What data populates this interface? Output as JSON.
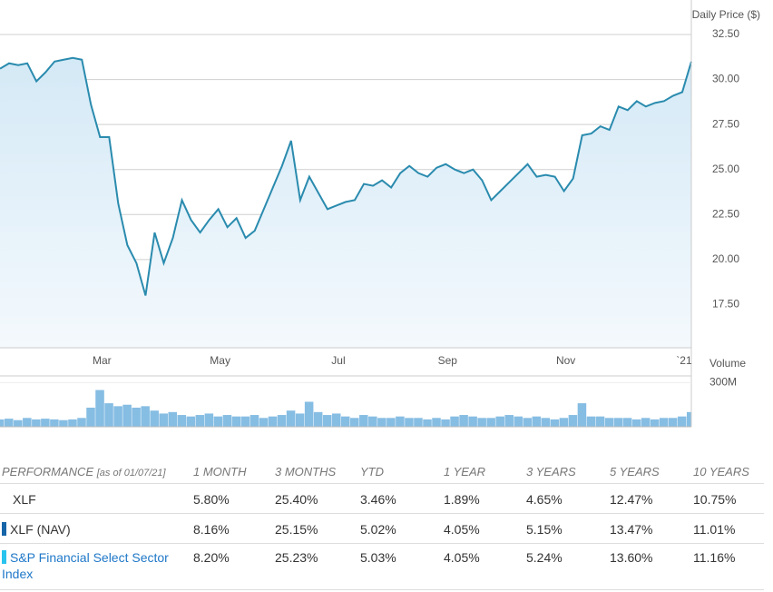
{
  "chart_data": [
    {
      "type": "line",
      "y_axis_label": "Daily Price ($)",
      "categories": [
        null,
        null,
        null,
        null,
        null,
        null,
        null,
        null,
        null,
        null,
        null,
        "Mar",
        null,
        null,
        null,
        null,
        null,
        null,
        null,
        null,
        null,
        null,
        null,
        null,
        "May",
        null,
        null,
        null,
        null,
        null,
        null,
        null,
        null,
        null,
        null,
        null,
        null,
        "Jul",
        null,
        null,
        null,
        null,
        null,
        null,
        null,
        null,
        null,
        null,
        null,
        "Sep",
        null,
        null,
        null,
        null,
        null,
        null,
        null,
        null,
        null,
        null,
        null,
        null,
        "Nov",
        null,
        null,
        null,
        null,
        null,
        null,
        null,
        null,
        null,
        null,
        null,
        null,
        "`21",
        null
      ],
      "series": [
        {
          "color": "#2a8bae",
          "values": [
            30.6,
            30.9,
            30.8,
            30.9,
            29.9,
            30.4,
            31.0,
            31.1,
            31.2,
            31.1,
            28.6,
            26.8,
            26.8,
            23.1,
            20.8,
            19.8,
            18.0,
            21.5,
            19.8,
            21.2,
            23.3,
            22.2,
            21.5,
            22.2,
            22.8,
            21.8,
            22.3,
            21.2,
            21.6,
            22.8,
            24.0,
            25.2,
            26.6,
            23.3,
            24.6,
            23.7,
            22.8,
            23.0,
            23.2,
            23.3,
            24.2,
            24.1,
            24.4,
            24.0,
            24.8,
            25.2,
            24.8,
            24.6,
            25.1,
            25.3,
            25.0,
            24.8,
            25.0,
            24.4,
            23.3,
            23.8,
            24.3,
            24.8,
            25.3,
            24.6,
            24.7,
            24.6,
            23.8,
            24.5,
            26.9,
            27.0,
            27.4,
            27.2,
            28.5,
            28.3,
            28.8,
            28.5,
            28.7,
            28.8,
            29.1,
            29.3,
            31.0
          ]
        }
      ],
      "ylim": [
        15.1,
        32.5
      ],
      "yticks": [
        {
          "value": 17.5,
          "label": "17.50"
        },
        {
          "value": 20,
          "label": "20.00"
        },
        {
          "value": 22.5,
          "label": "22.50"
        },
        {
          "value": 25,
          "label": "25.00"
        },
        {
          "value": 27.5,
          "label": "27.50"
        },
        {
          "value": 30,
          "label": "30.00"
        },
        {
          "value": 32.5,
          "label": "32.50"
        }
      ],
      "grid": true
    },
    {
      "type": "bar",
      "y_axis_label": "Volume",
      "color": "#86bde3",
      "values": [
        50,
        55,
        45,
        60,
        50,
        55,
        50,
        45,
        50,
        60,
        130,
        250,
        160,
        140,
        150,
        130,
        140,
        110,
        90,
        100,
        80,
        70,
        80,
        90,
        70,
        80,
        70,
        70,
        80,
        60,
        70,
        80,
        110,
        90,
        170,
        100,
        80,
        90,
        70,
        60,
        80,
        70,
        60,
        60,
        70,
        60,
        60,
        50,
        60,
        50,
        70,
        80,
        70,
        60,
        60,
        70,
        80,
        70,
        60,
        70,
        60,
        50,
        60,
        80,
        160,
        70,
        70,
        60,
        60,
        60,
        50,
        60,
        50,
        60,
        60,
        70,
        100
      ],
      "ylim": [
        0,
        340
      ],
      "yticks": [
        {
          "value": 300,
          "label": "300M"
        }
      ]
    }
  ],
  "table": {
    "title": "PERFORMANCE",
    "as_of": "[as of 01/07/21]",
    "columns": [
      "1 MONTH",
      "3 MONTHS",
      "YTD",
      "1 YEAR",
      "3 YEARS",
      "5 YEARS",
      "10 YEARS"
    ],
    "rows": [
      {
        "name": "XLF",
        "values": [
          "5.80%",
          "25.40%",
          "3.46%",
          "1.89%",
          "4.65%",
          "12.47%",
          "10.75%"
        ]
      },
      {
        "name": "XLF (NAV)",
        "color": "#1565a8",
        "values": [
          "8.16%",
          "25.15%",
          "5.02%",
          "4.05%",
          "5.15%",
          "13.47%",
          "11.01%"
        ]
      },
      {
        "name": "S&P Financial Select Sector Index",
        "color": "#29c4ee",
        "values": [
          "8.20%",
          "25.23%",
          "5.03%",
          "4.05%",
          "5.24%",
          "13.60%",
          "11.16%"
        ]
      }
    ]
  }
}
